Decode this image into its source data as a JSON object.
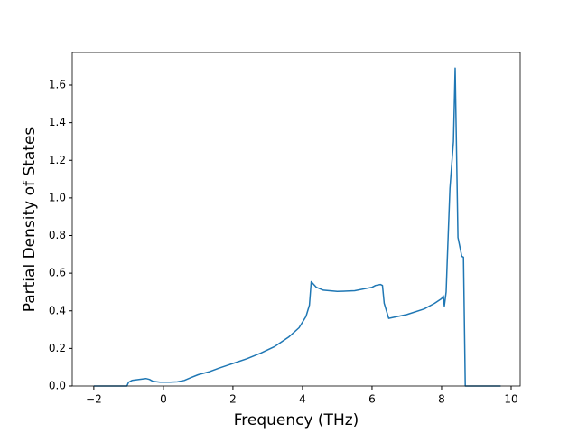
{
  "chart_data": {
    "type": "line",
    "xlabel": "Frequency (THz)",
    "ylabel": "Partial Density of States",
    "x": [
      -2,
      -1.05,
      -1.0,
      -0.9,
      -0.7,
      -0.5,
      -0.4,
      -0.3,
      -0.1,
      0.2,
      0.4,
      0.6,
      0.8,
      1.0,
      1.3,
      1.6,
      2.0,
      2.4,
      2.8,
      3.2,
      3.6,
      3.9,
      4.1,
      4.2,
      4.25,
      4.4,
      4.6,
      5.0,
      5.5,
      6.0,
      6.1,
      6.24,
      6.3,
      6.35,
      6.48,
      7.0,
      7.5,
      7.8,
      8.0,
      8.05,
      8.08,
      8.13,
      8.16,
      8.24,
      8.34,
      8.39,
      8.47,
      8.55,
      8.58,
      8.63,
      8.68,
      9.7
    ],
    "values": [
      0,
      0,
      0.02,
      0.03,
      0.035,
      0.04,
      0.035,
      0.025,
      0.02,
      0.02,
      0.022,
      0.03,
      0.045,
      0.06,
      0.075,
      0.095,
      0.12,
      0.145,
      0.175,
      0.21,
      0.26,
      0.31,
      0.37,
      0.43,
      0.555,
      0.525,
      0.51,
      0.503,
      0.507,
      0.525,
      0.535,
      0.54,
      0.535,
      0.44,
      0.36,
      0.38,
      0.41,
      0.44,
      0.465,
      0.48,
      0.425,
      0.5,
      0.65,
      1.05,
      1.3,
      1.69,
      0.79,
      0.72,
      0.69,
      0.685,
      0,
      0
    ],
    "color": "#1f77b4",
    "xlim": [
      -2.62,
      10.26
    ],
    "ylim": [
      0,
      1.773
    ],
    "xticks": [
      {
        "value": -2,
        "label": "−2"
      },
      0,
      2,
      4,
      6,
      8,
      10
    ],
    "yticks": [
      {
        "value": 0,
        "label": "0.0"
      },
      0.2,
      0.4,
      0.6,
      0.8,
      {
        "value": 1,
        "label": "1.0"
      },
      1.2,
      1.4,
      1.6
    ]
  }
}
